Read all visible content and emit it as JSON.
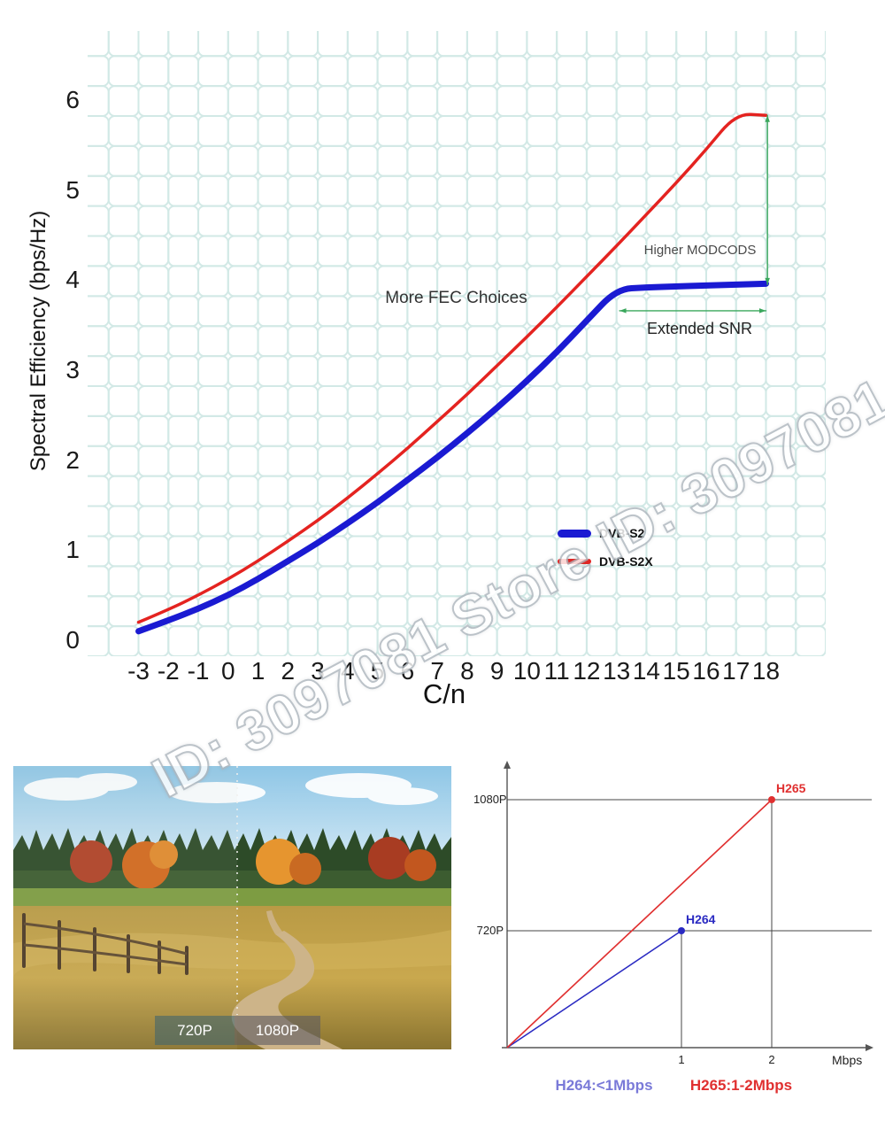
{
  "watermark": {
    "text": "ID: 3097081 Store ID: 3097081"
  },
  "chart_data": [
    {
      "id": "spectral-efficiency",
      "type": "line",
      "title": "",
      "xlabel": "C/n",
      "ylabel": "Spectral Efficiency (bps/Hz)",
      "xlim": [
        -5,
        20
      ],
      "ylim": [
        -0.2,
        7
      ],
      "xticks": [
        -3,
        -2,
        -1,
        0,
        1,
        2,
        3,
        4,
        5,
        6,
        7,
        8,
        9,
        10,
        11,
        12,
        13,
        14,
        15,
        16,
        17,
        18
      ],
      "yticks": [
        0,
        1,
        2,
        3,
        4,
        5,
        6
      ],
      "grid": {
        "show": true,
        "color": "#d2e9e6",
        "style": "rounded-cells"
      },
      "x": [
        -3,
        -2,
        -1,
        0,
        1,
        2,
        3,
        4,
        5,
        6,
        7,
        8,
        9,
        10,
        11,
        12,
        13,
        14,
        15,
        16,
        17,
        18
      ],
      "series": [
        {
          "name": "DVB-S2",
          "color": "#1a1ad2",
          "line_width": 7,
          "values": [
            0.1,
            0.22,
            0.35,
            0.5,
            0.68,
            0.88,
            1.08,
            1.3,
            1.53,
            1.78,
            2.03,
            2.3,
            2.58,
            2.88,
            3.2,
            3.55,
            3.9,
            3.92,
            3.93,
            3.94,
            3.95,
            3.96
          ]
        },
        {
          "name": "DVB-S2X",
          "color": "#e42320",
          "line_width": 3.5,
          "values": [
            0.2,
            0.34,
            0.5,
            0.68,
            0.88,
            1.1,
            1.33,
            1.58,
            1.85,
            2.13,
            2.43,
            2.73,
            3.05,
            3.37,
            3.7,
            4.04,
            4.38,
            4.73,
            5.08,
            5.45,
            5.85,
            5.83
          ]
        }
      ],
      "annotations": [
        {
          "text": "More FEC Choices"
        },
        {
          "text": "Higher MODCODS"
        },
        {
          "text": "Extended SNR"
        }
      ],
      "arrows": [
        {
          "kind": "vertical-double",
          "x": 18.05,
          "y_from": 3.95,
          "y_to": 5.83,
          "color": "#3aa75c"
        },
        {
          "kind": "horizontal-double",
          "y": 3.66,
          "x_from": 13.1,
          "x_to": 18.0,
          "color": "#3aa75c"
        }
      ],
      "legend": {
        "position": "center-right",
        "items": [
          "DVB-S2",
          "DVB-S2X"
        ]
      }
    },
    {
      "id": "codec-resolution-bitrate",
      "type": "line",
      "xlabel": "Mbps",
      "xticks": [
        1,
        2
      ],
      "ytick_labels": [
        "720P",
        "1080P"
      ],
      "series": [
        {
          "name": "H264",
          "color": "#2a2ac2",
          "mbps": 1,
          "resolution": "720P"
        },
        {
          "name": "H265",
          "color": "#e03030",
          "mbps": 2,
          "resolution": "1080P"
        }
      ],
      "captions": [
        {
          "text": "H264:<1Mbps",
          "color": "#7a7ad8"
        },
        {
          "text": "H265:1-2Mbps",
          "color": "#e03030"
        }
      ]
    }
  ],
  "photo": {
    "description": "autumn landscape resolution comparison",
    "labels": [
      {
        "text": "720P"
      },
      {
        "text": "1080P"
      }
    ]
  }
}
